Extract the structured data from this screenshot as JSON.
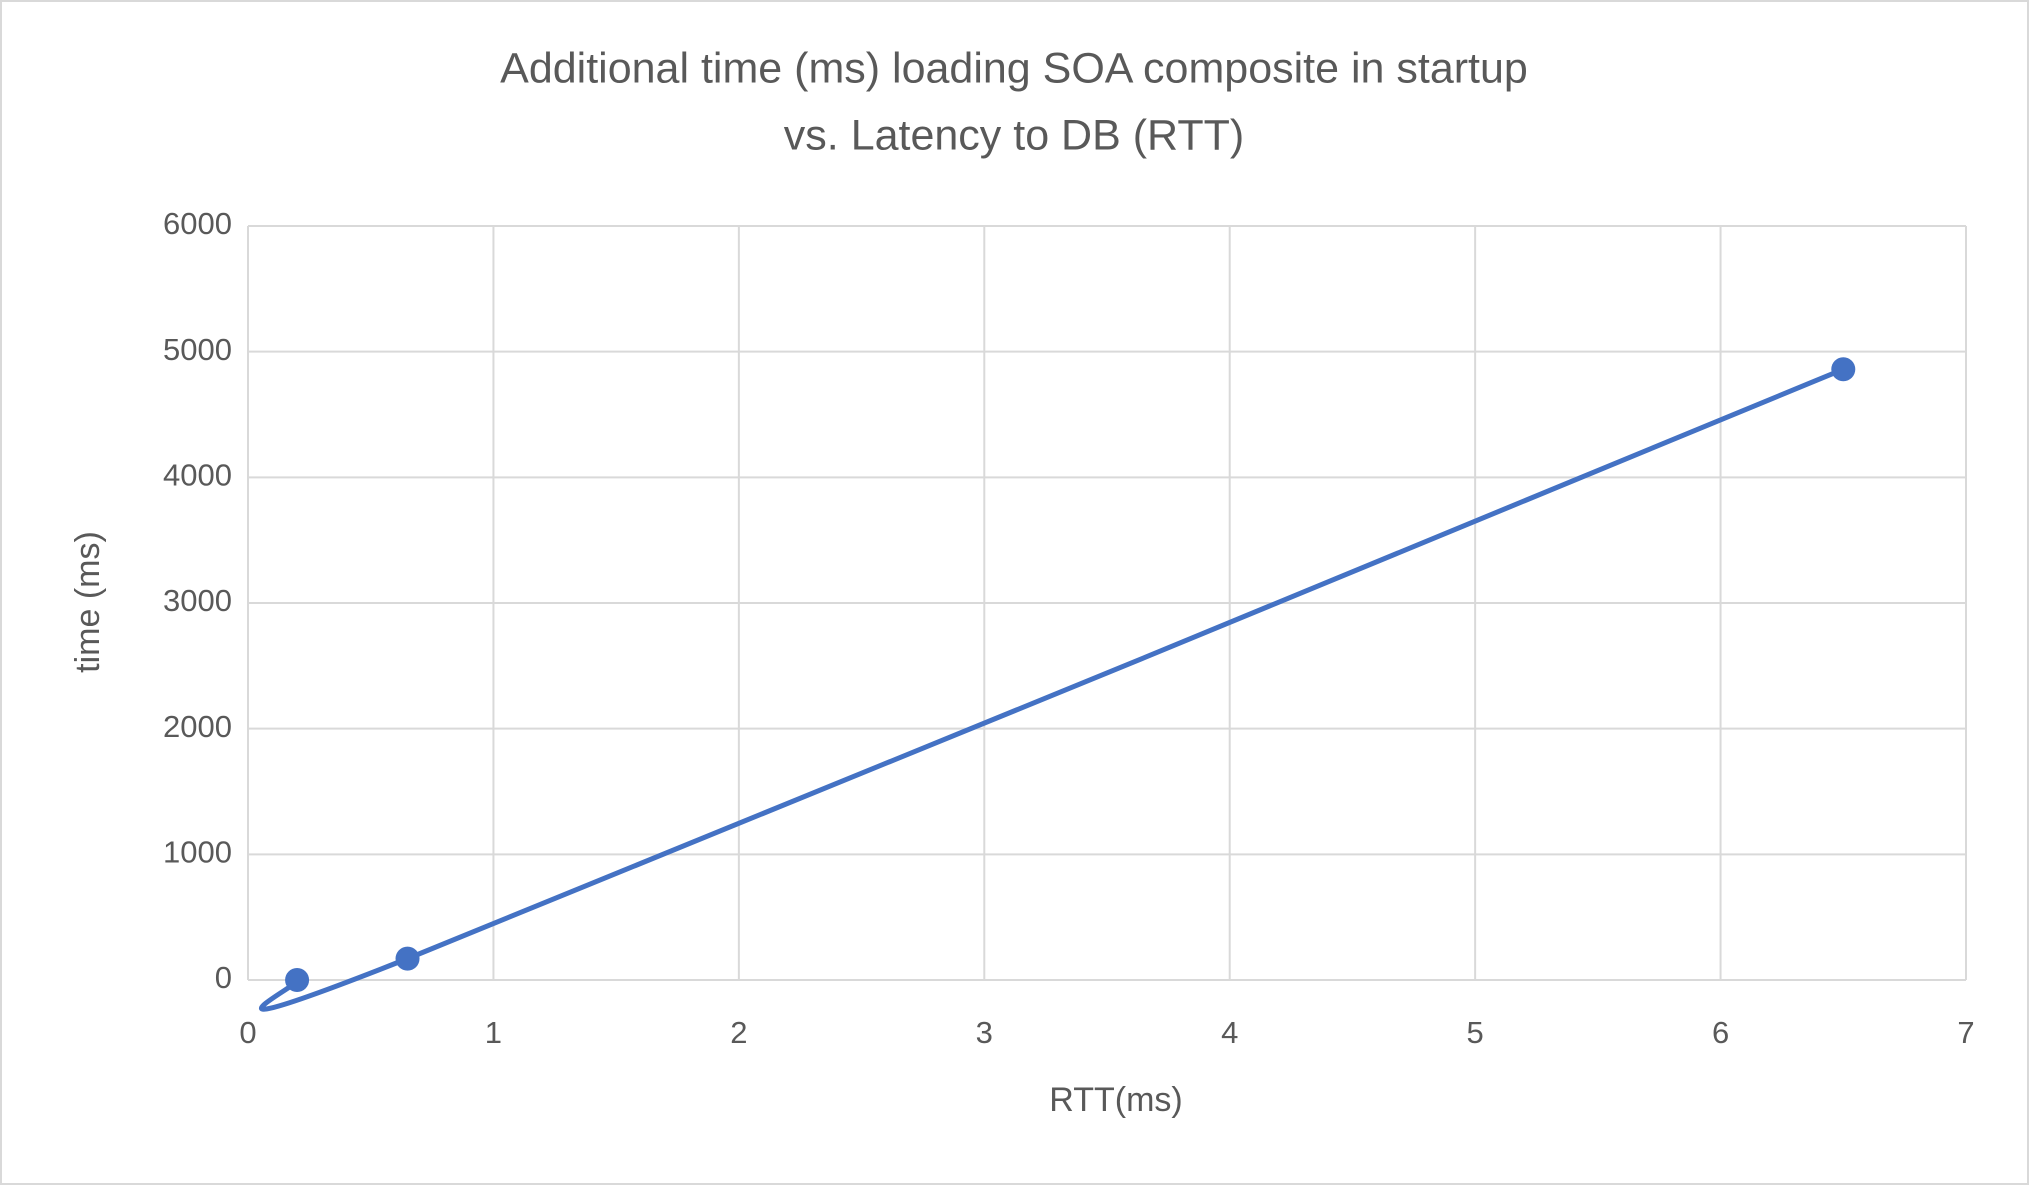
{
  "chart_data": {
    "type": "scatter",
    "title": [
      "Additional time (ms) loading SOA composite in startup",
      "vs. Latency to DB (RTT)"
    ],
    "x_label": "RTT(ms)",
    "y_label": "time (ms)",
    "series": [
      {
        "color": "#4472c4",
        "x": [
          0.2,
          0.65,
          6.5
        ],
        "values": [
          0,
          170,
          4860
        ]
      }
    ],
    "smooth": true,
    "xlim": [
      0,
      7
    ],
    "xticks": [
      0,
      1,
      2,
      3,
      4,
      5,
      6,
      7
    ],
    "ylim": [
      0,
      6000
    ],
    "yticks": [
      0,
      1000,
      2000,
      3000,
      4000,
      5000,
      6000
    ],
    "grid": true
  }
}
